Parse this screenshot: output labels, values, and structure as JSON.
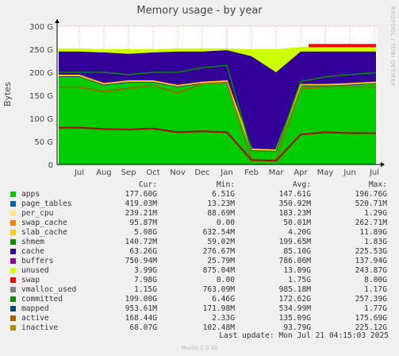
{
  "side_label": "RRDTOOL / TOBI OETIKER",
  "footer": "Munin 2.0.42",
  "last_update": "Last update: Mon Jul 21 04:15:03 2025",
  "chart_data": {
    "type": "area",
    "title": "Memory usage - by year",
    "ylabel": "Bytes",
    "ylim": [
      0,
      300
    ],
    "yticks": [
      "0",
      "50 G",
      "100 G",
      "150 G",
      "200 G",
      "250 G",
      "300 G"
    ],
    "x": [
      "Jul",
      "Aug",
      "Sep",
      "Oct",
      "Nov",
      "Dec",
      "Jan",
      "Feb",
      "Mar",
      "Apr",
      "May",
      "Jun",
      "Jul"
    ],
    "grid": true,
    "stack_levels_G": [
      {
        "at": "Jul",
        "apps": 190,
        "cache": 245,
        "unused": 252
      },
      {
        "at": "Aug",
        "apps": 172,
        "cache": 243,
        "unused": 250
      },
      {
        "at": "Sep",
        "apps": 178,
        "cache": 240,
        "unused": 250
      },
      {
        "at": "Oct",
        "apps": 178,
        "cache": 243,
        "unused": 250
      },
      {
        "at": "Nov",
        "apps": 168,
        "cache": 245,
        "unused": 252
      },
      {
        "at": "Dec",
        "apps": 175,
        "cache": 245,
        "unused": 252
      },
      {
        "at": "Jan",
        "apps": 178,
        "cache": 248,
        "unused": 252
      },
      {
        "at": "Feb",
        "apps": 30,
        "cache": 235,
        "unused": 250
      },
      {
        "at": "Mar",
        "apps": 28,
        "cache": 200,
        "unused": 250
      },
      {
        "at": "Apr",
        "apps": 170,
        "cache": 245,
        "unused": 255
      },
      {
        "at": "May",
        "apps": 170,
        "cache": 245,
        "unused": 258
      },
      {
        "at": "Jun",
        "apps": 172,
        "cache": 245,
        "unused": 258
      },
      {
        "at": "Jul",
        "apps": 175,
        "cache": 245,
        "unused": 258
      }
    ],
    "line_levels_G": {
      "inactive": [
        80,
        77,
        76,
        78,
        70,
        72,
        70,
        10,
        8,
        65,
        70,
        68,
        68
      ],
      "active": [
        168,
        158,
        165,
        172,
        155,
        175,
        178,
        8,
        10,
        165,
        168,
        168,
        168
      ],
      "committed": [
        200,
        200,
        195,
        200,
        200,
        210,
        215,
        30,
        28,
        180,
        190,
        195,
        199
      ]
    },
    "legend_headers": [
      "Cur:",
      "Min:",
      "Avg:",
      "Max:"
    ],
    "series": [
      {
        "name": "apps",
        "color": "#00cc00",
        "cur": "177.60G",
        "min": "6.51G",
        "avg": "147.61G",
        "max": "196.76G"
      },
      {
        "name": "page_tables",
        "color": "#0066b3",
        "cur": "419.03M",
        "min": "13.23M",
        "avg": "350.92M",
        "max": "520.71M"
      },
      {
        "name": "per_cpu",
        "color": "#ffe680",
        "cur": "239.21M",
        "min": "88.69M",
        "avg": "183.23M",
        "max": "1.29G"
      },
      {
        "name": "swap_cache",
        "color": "#ff8000",
        "cur": "95.87M",
        "min": "0.00",
        "avg": "50.01M",
        "max": "262.71M"
      },
      {
        "name": "slab_cache",
        "color": "#ffcc00",
        "cur": "5.08G",
        "min": "632.54M",
        "avg": "4.20G",
        "max": "11.89G"
      },
      {
        "name": "shmem",
        "color": "#008f00",
        "cur": "140.72M",
        "min": "59.02M",
        "avg": "199.65M",
        "max": "1.83G"
      },
      {
        "name": "cache",
        "color": "#330099",
        "cur": "63.26G",
        "min": "276.67M",
        "avg": "85.10G",
        "max": "225.53G"
      },
      {
        "name": "buffers",
        "color": "#990099",
        "cur": "750.94M",
        "min": "25.79M",
        "avg": "786.06M",
        "max": "137.94G"
      },
      {
        "name": "unused",
        "color": "#ccff00",
        "cur": "3.99G",
        "min": "875.04M",
        "avg": "13.09G",
        "max": "243.87G"
      },
      {
        "name": "swap",
        "color": "#ff0000",
        "cur": "7.98G",
        "min": "0.00",
        "avg": "1.75G",
        "max": "8.00G"
      },
      {
        "name": "vmalloc_used",
        "color": "#808080",
        "cur": "1.15G",
        "min": "763.09M",
        "avg": "985.18M",
        "max": "1.17G"
      },
      {
        "name": "committed",
        "color": "#008f00",
        "cur": "199.00G",
        "min": "6.46G",
        "avg": "172.62G",
        "max": "257.39G"
      },
      {
        "name": "mapped",
        "color": "#00487d",
        "cur": "953.61M",
        "min": "171.98M",
        "avg": "534.99M",
        "max": "1.77G"
      },
      {
        "name": "active",
        "color": "#b35a00",
        "cur": "168.44G",
        "min": "2.33G",
        "avg": "135.09G",
        "max": "175.69G"
      },
      {
        "name": "inactive",
        "color": "#b38f00",
        "cur": "68.07G",
        "min": "102.48M",
        "avg": "93.79G",
        "max": "225.12G"
      }
    ]
  }
}
